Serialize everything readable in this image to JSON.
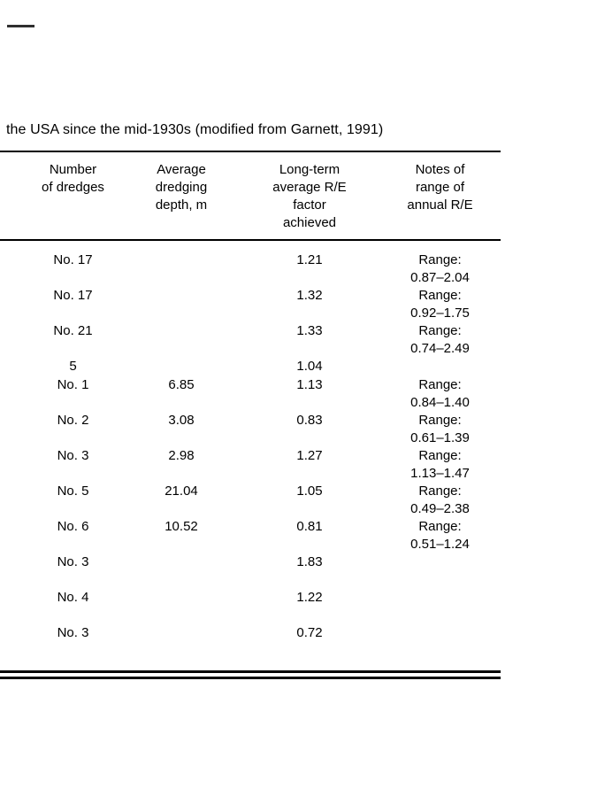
{
  "caption": "the USA since the mid-1930s (modified from Garnett, 1991)",
  "table": {
    "headers": [
      "Number\nof dredges",
      "Average\ndredging\ndepth, m",
      "Long-term\naverage R/E\nfactor\nachieved",
      "Notes of\nrange of\nannual R/E"
    ],
    "rows": [
      [
        "No. 17",
        "",
        "1.21",
        "Range:\n0.87–2.04"
      ],
      [
        "No. 17",
        "",
        "1.32",
        "Range:\n0.92–1.75"
      ],
      [
        "No. 21",
        "",
        "1.33",
        "Range:\n0.74–2.49"
      ],
      [
        "5",
        "",
        "1.04",
        ""
      ],
      [
        "No. 1",
        "6.85",
        "1.13",
        "Range:\n0.84–1.40"
      ],
      [
        "No. 2",
        "3.08",
        "0.83",
        "Range:\n0.61–1.39"
      ],
      [
        "No. 3",
        "2.98",
        "1.27",
        "Range:\n1.13–1.47"
      ],
      [
        "No. 5",
        "21.04",
        "1.05",
        "Range:\n0.49–2.38"
      ],
      [
        "No. 6",
        "10.52",
        "0.81",
        "Range:\n0.51–1.24"
      ],
      [
        "No. 3",
        "",
        "1.83",
        ""
      ],
      [
        "No. 4",
        "",
        "1.22",
        ""
      ],
      [
        "No. 3",
        "",
        "0.72",
        ""
      ]
    ]
  }
}
